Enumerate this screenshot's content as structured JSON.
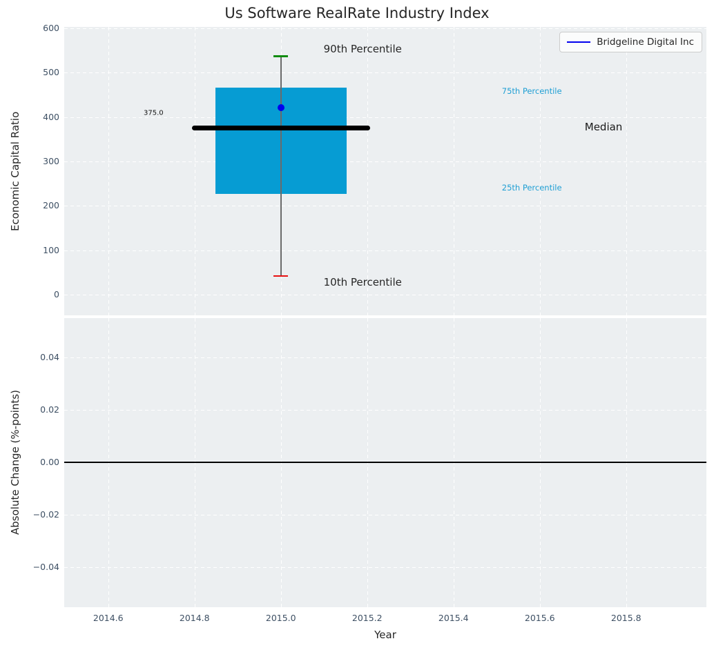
{
  "title": "Us Software RealRate Industry Index",
  "legend": {
    "label": "Bridgeline Digital Inc"
  },
  "colors": {
    "axes_bg": "#eceff1",
    "grid": "#ffffff",
    "box_fill": "#069cd3",
    "median_line": "#000000",
    "whisker": "#6a6a6a",
    "cap_90th": "#108c10",
    "cap_10th": "#e81010",
    "company_point": "#0000ee",
    "legend_line": "#0000ee",
    "tick_text": "#3d4f63",
    "dark_text": "#262626",
    "percentile_text": "#1f9fd4"
  },
  "chart_data": {
    "type": "box",
    "title": "Us Software RealRate Industry Index",
    "xlabel": "Year",
    "legend_position": "upper right",
    "grid": true,
    "x_axis": {
      "lim": [
        2014.498,
        2015.986
      ],
      "ticks": [
        {
          "v": 2014.6,
          "label": "2014.6"
        },
        {
          "v": 2014.8,
          "label": "2014.8"
        },
        {
          "v": 2015.0,
          "label": "2015.0"
        },
        {
          "v": 2015.2,
          "label": "2015.2"
        },
        {
          "v": 2015.4,
          "label": "2015.4"
        },
        {
          "v": 2015.6,
          "label": "2015.6"
        },
        {
          "v": 2015.8,
          "label": "2015.8"
        }
      ]
    },
    "top_panel": {
      "ylabel": "Economic Capital Ratio",
      "ylim": [
        -46.6,
        603.1
      ],
      "yticks": [
        {
          "v": 0,
          "label": "0"
        },
        {
          "v": 100,
          "label": "100"
        },
        {
          "v": 200,
          "label": "200"
        },
        {
          "v": 300,
          "label": "300"
        },
        {
          "v": 400,
          "label": "400"
        },
        {
          "v": 500,
          "label": "500"
        },
        {
          "v": 600,
          "label": "600"
        }
      ],
      "box": {
        "year": 2015.0,
        "p10": 42,
        "q1": 227,
        "median": 375,
        "q3": 467,
        "p90": 537,
        "median_label": "375.0",
        "box_halfwidth_years": 0.152,
        "median_halfwidth_years": 0.206,
        "cap_halfwidth_years": 0.0165
      },
      "company_point": {
        "label": "Bridgeline Digital Inc",
        "year": 2015.0,
        "value": 422
      },
      "annotations": [
        {
          "text": "90th Percentile",
          "x": 2015.099,
          "y": 553,
          "size": 15,
          "color": "#262626"
        },
        {
          "text": "75th Percentile",
          "x": 2015.512,
          "y": 459,
          "size": 11.5,
          "color": "#1f9fd4"
        },
        {
          "text": "Median",
          "x": 2015.704,
          "y": 378,
          "size": 15,
          "color": "#1a1a1a"
        },
        {
          "text": "25th Percentile",
          "x": 2015.512,
          "y": 241,
          "size": 11.5,
          "color": "#1f9fd4"
        },
        {
          "text": "10th Percentile",
          "x": 2015.099,
          "y": 28,
          "size": 15,
          "color": "#262626"
        },
        {
          "text": "375.0",
          "x": 2014.682,
          "y": 409,
          "size": 10,
          "color": "#111111"
        }
      ]
    },
    "bottom_panel": {
      "ylabel": "Absolute Change (%-points)",
      "ylim": [
        -0.0553,
        0.055
      ],
      "yticks": [
        {
          "v": 0.04,
          "label": "0.04"
        },
        {
          "v": 0.02,
          "label": "0.02"
        },
        {
          "v": 0.0,
          "label": "0.00"
        },
        {
          "v": -0.02,
          "label": "−0.02"
        },
        {
          "v": -0.04,
          "label": "−0.04"
        }
      ],
      "zero_line_y": 0.0
    }
  }
}
